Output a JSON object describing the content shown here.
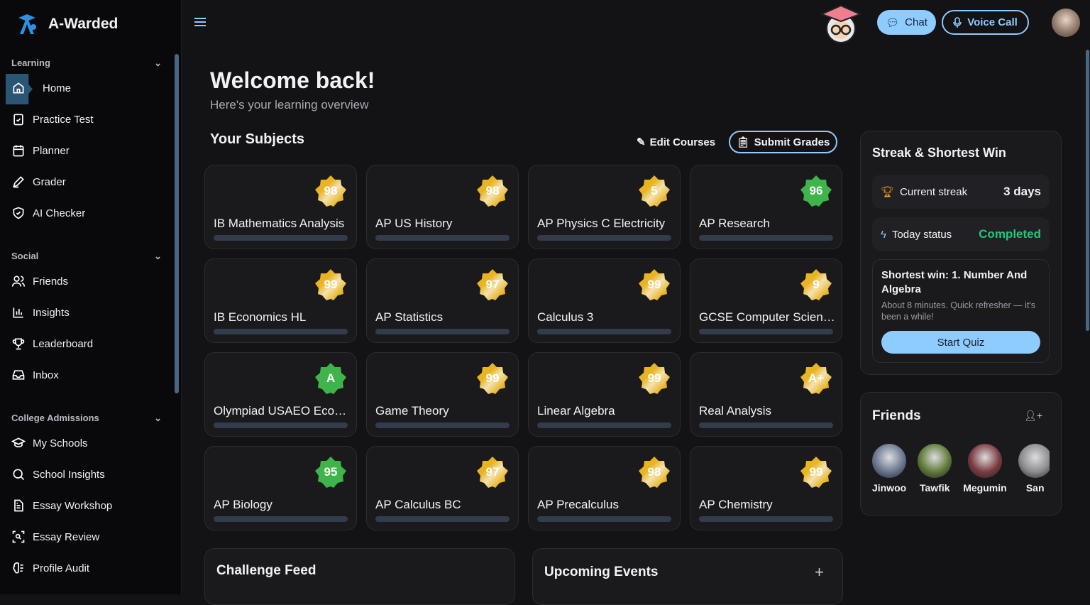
{
  "app": {
    "name": "A-Warded"
  },
  "sidebar": {
    "sections": [
      {
        "label": "Learning",
        "items": [
          {
            "label": "Home",
            "icon": "home-icon",
            "active": true
          },
          {
            "label": "Practice Test",
            "icon": "clipboard-check-icon"
          },
          {
            "label": "Planner",
            "icon": "calendar-icon"
          },
          {
            "label": "Grader",
            "icon": "pen-icon"
          },
          {
            "label": "AI Checker",
            "icon": "shield-check-icon"
          }
        ]
      },
      {
        "label": "Social",
        "items": [
          {
            "label": "Friends",
            "icon": "users-icon"
          },
          {
            "label": "Insights",
            "icon": "bar-chart-icon"
          },
          {
            "label": "Leaderboard",
            "icon": "trophy-icon"
          },
          {
            "label": "Inbox",
            "icon": "inbox-icon"
          }
        ]
      },
      {
        "label": "College Admissions",
        "items": [
          {
            "label": "My Schools",
            "icon": "graduation-cap-icon"
          },
          {
            "label": "School Insights",
            "icon": "search-icon"
          },
          {
            "label": "Essay Workshop",
            "icon": "file-text-icon"
          },
          {
            "label": "Essay Review",
            "icon": "scan-search-icon"
          },
          {
            "label": "Profile Audit",
            "icon": "brain-icon"
          }
        ]
      }
    ]
  },
  "header": {
    "chat_label": "Chat",
    "voice_label": "Voice Call",
    "accent": "#8ecbff"
  },
  "main": {
    "title": "Welcome back!",
    "subtitle": "Here's your learning overview",
    "subjects_title": "Your Subjects",
    "edit_label": "Edit Courses",
    "submit_label": "Submit Grades",
    "subjects": [
      {
        "name": "IB Mathematics Analysis",
        "grade": "98",
        "color": "gold"
      },
      {
        "name": "AP US History",
        "grade": "98",
        "color": "gold"
      },
      {
        "name": "AP Physics C Electricity",
        "grade": "5",
        "color": "gold"
      },
      {
        "name": "AP Research",
        "grade": "96",
        "color": "green"
      },
      {
        "name": "IB Economics HL",
        "grade": "99",
        "color": "gold"
      },
      {
        "name": "AP Statistics",
        "grade": "97",
        "color": "gold"
      },
      {
        "name": "Calculus 3",
        "grade": "99",
        "color": "gold"
      },
      {
        "name": "GCSE Computer Science",
        "grade": "9",
        "color": "gold"
      },
      {
        "name": "Olympiad USAEO Economics",
        "grade": "A",
        "color": "green"
      },
      {
        "name": "Game Theory",
        "grade": "99",
        "color": "gold"
      },
      {
        "name": "Linear Algebra",
        "grade": "99",
        "color": "gold"
      },
      {
        "name": "Real Analysis",
        "grade": "A+",
        "color": "gold"
      },
      {
        "name": "AP Biology",
        "grade": "95",
        "color": "green"
      },
      {
        "name": "AP Calculus BC",
        "grade": "97",
        "color": "gold"
      },
      {
        "name": "AP Precalculus",
        "grade": "98",
        "color": "gold"
      },
      {
        "name": "AP Chemistry",
        "grade": "99",
        "color": "gold"
      }
    ],
    "challenge_title": "Challenge Feed",
    "events_title": "Upcoming Events"
  },
  "streak": {
    "title": "Streak & Shortest Win",
    "current_label": "Current streak",
    "current_value": "3 days",
    "today_label": "Today status",
    "today_value": "Completed",
    "today_color": "#22c77a",
    "shortest_title": "Shortest win: 1. Number And Algebra",
    "shortest_desc": "About 8 minutes. Quick refresher — it's been a while!",
    "quiz_label": "Start Quiz"
  },
  "friends": {
    "title": "Friends",
    "list": [
      {
        "name": "Jinwoo"
      },
      {
        "name": "Tawfik"
      },
      {
        "name": "Megumin"
      },
      {
        "name": "San"
      }
    ]
  },
  "colors": {
    "gold": "#e9b422",
    "green": "#3fb44a"
  }
}
